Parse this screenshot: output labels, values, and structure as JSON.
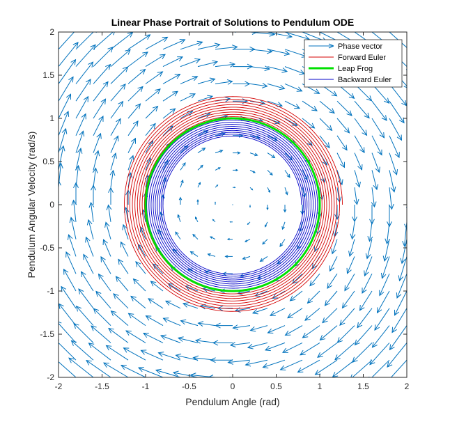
{
  "chart_data": {
    "type": "line",
    "title": "Linear Phase Portrait of Solutions to Pendulum ODE",
    "xlabel": "Pendulum Angle (rad)",
    "ylabel": "Pendulum Angular Velocity (rad/s)",
    "xlim": [
      -2,
      2
    ],
    "ylim": [
      -2,
      2
    ],
    "xticks": [
      -2,
      -1.5,
      -1,
      -0.5,
      0,
      0.5,
      1,
      1.5,
      2
    ],
    "yticks": [
      -2,
      -1.5,
      -1,
      -0.5,
      0,
      0.5,
      1,
      1.5,
      2
    ],
    "xtick_labels": [
      "-2",
      "-1.5",
      "-1",
      "-0.5",
      "0",
      "0.5",
      "1",
      "1.5",
      "2"
    ],
    "ytick_labels": [
      "-2",
      "-1.5",
      "-1",
      "-0.5",
      "0",
      "0.5",
      "1",
      "1.5",
      "2"
    ],
    "grid": false,
    "legend_position": "top-right",
    "legend": [
      {
        "label": "Phase vector",
        "color": "#0072BD",
        "style": "arrow"
      },
      {
        "label": "Forward Euler",
        "color": "#D40000",
        "style": "line"
      },
      {
        "label": "Leap Frog",
        "color": "#00E000",
        "style": "thick-line"
      },
      {
        "label": "Backward Euler",
        "color": "#0000C8",
        "style": "line"
      }
    ],
    "series": [
      {
        "name": "Phase vector",
        "kind": "quiver",
        "color": "#0072BD",
        "grid_x": [
          -2,
          -1.8,
          -1.6,
          -1.4,
          -1.2,
          -1.0,
          -0.8,
          -0.6,
          -0.4,
          -0.2,
          0,
          0.2,
          0.4,
          0.6,
          0.8,
          1.0,
          1.2,
          1.4,
          1.6,
          1.8,
          2.0
        ],
        "grid_y": [
          -2,
          -1.8,
          -1.6,
          -1.4,
          -1.2,
          -1.0,
          -0.8,
          -0.6,
          -0.4,
          -0.2,
          0,
          0.2,
          0.4,
          0.6,
          0.8,
          1.0,
          1.2,
          1.4,
          1.6,
          1.8,
          2.0
        ],
        "field": {
          "dx": "y",
          "dy": "-x"
        }
      },
      {
        "name": "Forward Euler",
        "kind": "spiral",
        "color": "#D40000",
        "center": [
          0,
          0
        ],
        "radius_start": 1.0,
        "radius_end": 1.26,
        "turns": 9
      },
      {
        "name": "Leap Frog",
        "kind": "circle",
        "color": "#00E000",
        "center": [
          0,
          0
        ],
        "radius": 1.0
      },
      {
        "name": "Backward Euler",
        "kind": "spiral",
        "color": "#0000C8",
        "center": [
          0,
          0
        ],
        "radius_start": 1.0,
        "radius_end": 0.79,
        "turns": 9
      }
    ]
  }
}
